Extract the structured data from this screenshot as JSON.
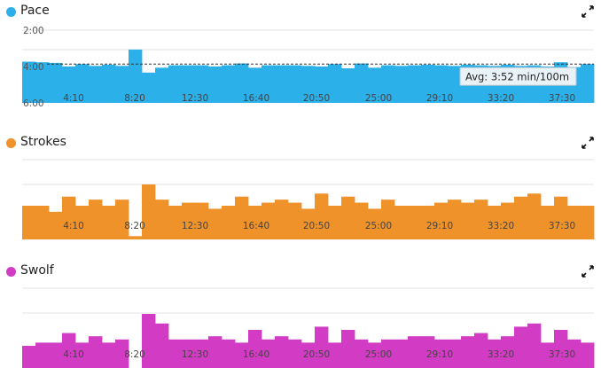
{
  "panels": [
    {
      "title": "Pace",
      "dot_color": "#2bb0ea",
      "icon": "expand-icon"
    },
    {
      "title": "Strokes",
      "dot_color": "#ef922a",
      "icon": "expand-icon"
    },
    {
      "title": "Swolf",
      "dot_color": "#d23cc4",
      "icon": "expand-icon"
    }
  ],
  "chart_data": [
    {
      "type": "bar",
      "title": "Pace",
      "color": "#2bb0ea",
      "y_ticks": [
        "2:00",
        "4:00",
        "6:00"
      ],
      "y_tick_values": [
        120,
        240,
        360
      ],
      "ylim": [
        120,
        360
      ],
      "y_inverted": true,
      "x_ticks": [
        "4:10",
        "8:20",
        "12:30",
        "16:40",
        "20:50",
        "25:00",
        "29:10",
        "33:20",
        "37:30"
      ],
      "average_value": 232,
      "average_label": "Avg: 3:52 min/100m",
      "values": [
        224,
        226,
        228,
        240,
        232,
        238,
        234,
        238,
        184,
        260,
        244,
        236,
        236,
        236,
        240,
        236,
        230,
        244,
        236,
        236,
        236,
        238,
        240,
        232,
        246,
        230,
        244,
        236,
        238,
        236,
        234,
        236,
        238,
        234,
        236,
        238,
        234,
        238,
        236,
        240,
        226,
        242,
        232
      ]
    },
    {
      "type": "bar",
      "title": "Strokes",
      "color": "#ef922a",
      "x_ticks": [
        "4:10",
        "8:20",
        "12:30",
        "16:40",
        "20:50",
        "25:00",
        "29:10",
        "33:20",
        "37:30"
      ],
      "values": [
        14,
        14,
        12,
        17,
        14,
        16,
        14,
        16,
        4,
        21,
        16,
        14,
        15,
        15,
        13,
        14,
        17,
        14,
        15,
        16,
        15,
        13,
        18,
        14,
        17,
        15,
        13,
        16,
        14,
        14,
        14,
        15,
        16,
        15,
        16,
        14,
        15,
        17,
        18,
        14,
        17,
        14,
        14
      ]
    },
    {
      "type": "bar",
      "title": "Swolf",
      "color": "#d23cc4",
      "x_ticks": [
        "4:10",
        "8:20",
        "12:30",
        "16:40",
        "20:50",
        "25:00",
        "29:10",
        "33:20",
        "37:30"
      ],
      "values": [
        10,
        11,
        11,
        14,
        11,
        13,
        11,
        12,
        3,
        20,
        17,
        12,
        12,
        12,
        13,
        12,
        11,
        15,
        12,
        13,
        12,
        11,
        16,
        11,
        15,
        12,
        11,
        12,
        12,
        13,
        13,
        12,
        12,
        13,
        14,
        12,
        13,
        16,
        17,
        11,
        15,
        12,
        11
      ]
    }
  ]
}
